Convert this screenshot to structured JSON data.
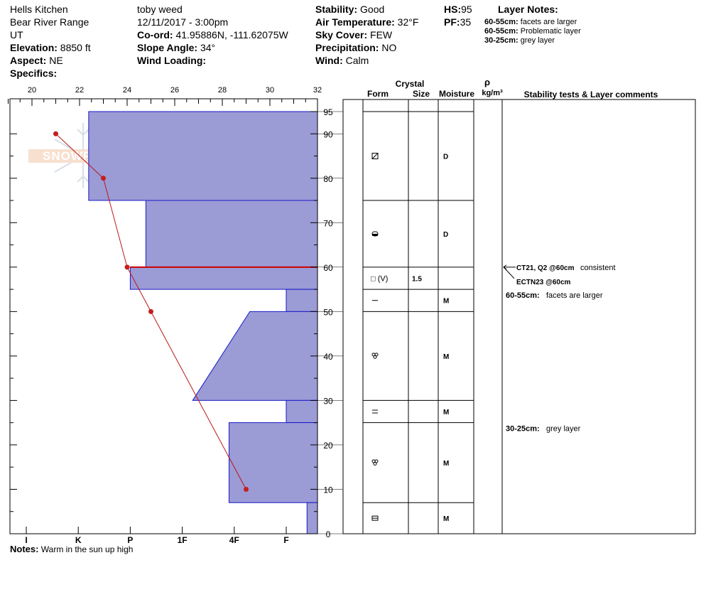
{
  "header": {
    "location": "Hells Kitchen",
    "range": "Bear River Range",
    "state": "UT",
    "elevation_label": "Elevation:",
    "elevation": "8850 ft",
    "aspect_label": "Aspect:",
    "aspect": "NE",
    "specifics_label": "Specifics:",
    "observer": "toby weed",
    "datetime": "12/11/2017 - 3:00pm",
    "coord_label": "Co-ord:",
    "coord": "41.95886N, -111.62075W",
    "slope_label": "Slope Angle:",
    "slope": "34°",
    "wind_loading_label": "Wind Loading:",
    "stability_label": "Stability:",
    "stability": "Good",
    "air_temp_label": "Air Temperature:",
    "air_temp": "32°F",
    "sky_label": "Sky Cover:",
    "sky": "FEW",
    "precip_label": "Precipitation:",
    "precip": "NO",
    "wind_label": "Wind:",
    "wind": "Calm",
    "hs_label": "HS:",
    "hs": "95",
    "pf_label": "PF:",
    "pf": "35",
    "layer_notes_title": "Layer Notes:",
    "layer_notes": [
      {
        "depth": "60-55cm:",
        "text": "facets are larger"
      },
      {
        "depth": "60-55cm:",
        "text": "Problematic layer"
      },
      {
        "depth": "30-25cm:",
        "text": "grey layer"
      }
    ]
  },
  "footer": {
    "notes_label": "Notes:",
    "notes": "Warm in the sun up high"
  },
  "logo": {
    "text": "SNOWPILOT"
  },
  "table": {
    "crystal_label": "Crystal",
    "form_label": "Form",
    "size_label": "Size",
    "moisture_label": "Moisture",
    "rho_label": "ρ",
    "density_label": "kg/m³",
    "comments_label": "Stability tests & Layer comments"
  },
  "chart_data": {
    "type": "snow-profile",
    "temperature_axis": {
      "ticks": [
        20,
        22,
        24,
        26,
        28,
        30,
        32
      ],
      "range": [
        19,
        32
      ]
    },
    "hardness_axis": {
      "labels": [
        "I",
        "K",
        "P",
        "1F",
        "4F",
        "F"
      ]
    },
    "depth_axis": {
      "ticks": [
        0,
        10,
        20,
        30,
        40,
        50,
        60,
        70,
        80,
        90,
        95
      ],
      "range": [
        0,
        95
      ]
    },
    "hardness_profile": [
      {
        "bottom": 75,
        "top": 95,
        "hardness": 1.2
      },
      {
        "bottom": 60,
        "top": 75,
        "hardness": 2.3
      },
      {
        "bottom": 55,
        "top": 60,
        "hardness": 2.0
      },
      {
        "bottom": 50,
        "top": 55,
        "hardness": 5.0
      },
      {
        "bottom": 30,
        "top": 50,
        "hardness_bottom": 3.2,
        "hardness_top": 4.3
      },
      {
        "bottom": 25,
        "top": 30,
        "hardness": 5.0
      },
      {
        "bottom": 7,
        "top": 25,
        "hardness": 3.9
      },
      {
        "bottom": 0,
        "top": 7,
        "hardness": 5.4
      }
    ],
    "temperature_profile": [
      {
        "depth": 90,
        "temp": 21.0
      },
      {
        "depth": 80,
        "temp": 23.0
      },
      {
        "depth": 60,
        "temp": 24.0
      },
      {
        "depth": 50,
        "temp": 25.0
      },
      {
        "depth": 10,
        "temp": 29.0
      }
    ],
    "critical_layer_depth": 60,
    "layers": [
      {
        "bottom": 75,
        "top": 95,
        "form": "decomposing",
        "size": "",
        "moisture": "D"
      },
      {
        "bottom": 60,
        "top": 75,
        "form": "rounding-faceted",
        "size": "",
        "moisture": "D"
      },
      {
        "bottom": 55,
        "top": 60,
        "form": "□ (V)",
        "size": "1.5",
        "moisture": ""
      },
      {
        "bottom": 50,
        "top": 55,
        "form": "ice-crust",
        "size": "",
        "moisture": "M"
      },
      {
        "bottom": 30,
        "top": 50,
        "form": "melt-forms",
        "size": "",
        "moisture": "M"
      },
      {
        "bottom": 25,
        "top": 30,
        "form": "double-crust",
        "size": "",
        "moisture": "M"
      },
      {
        "bottom": 7,
        "top": 25,
        "form": "melt-forms",
        "size": "",
        "moisture": "M"
      },
      {
        "bottom": 0,
        "top": 7,
        "form": "rounded-faceted",
        "size": "",
        "moisture": "M"
      }
    ],
    "stability_tests": [
      {
        "depth": 60,
        "result": "CT21, Q2 @60cm",
        "note": "consistent"
      },
      {
        "depth": 60,
        "result": "ECTN23 @60cm",
        "note": ""
      }
    ],
    "layer_comments": [
      {
        "depth": 55,
        "label": "60-55cm:",
        "text": "facets are larger"
      },
      {
        "depth": 25,
        "label": "30-25cm:",
        "text": "grey layer"
      }
    ]
  }
}
